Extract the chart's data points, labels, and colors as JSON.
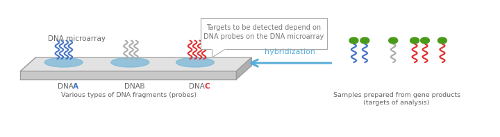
{
  "bg_color": "#ffffff",
  "callout_text": "Targets to be detected depend on\nDNA probes on the DNA microarray",
  "hybridization_text": "hybridization",
  "microarray_label": "DNA microarray",
  "dna_labels": [
    [
      "DNA",
      "A",
      "#4472c4"
    ],
    [
      "DNA",
      "B",
      "#aaaaaa"
    ],
    [
      "DNA",
      "C",
      "#e03030"
    ]
  ],
  "probe_text": "Various types of DNA fragments (probes)",
  "sample_text": "Samples prepared from gene products\n(targets of analysis)",
  "strand_colors_array": [
    "#4472c4",
    "#aaaaaa",
    "#e03030"
  ],
  "arrow_color": "#5aadda",
  "green_color": "#4a9a1a",
  "blue_spot": "#7ab8d8",
  "platform_top": "#e2e2e2",
  "platform_front": "#c8c8c8",
  "platform_side": "#b0b0b0",
  "platform_bottom": "#a8a8a8",
  "platform_outline": "#999999",
  "label_color": "#666666",
  "callout_border": "#aaaaaa",
  "callout_text_color": "#777777"
}
